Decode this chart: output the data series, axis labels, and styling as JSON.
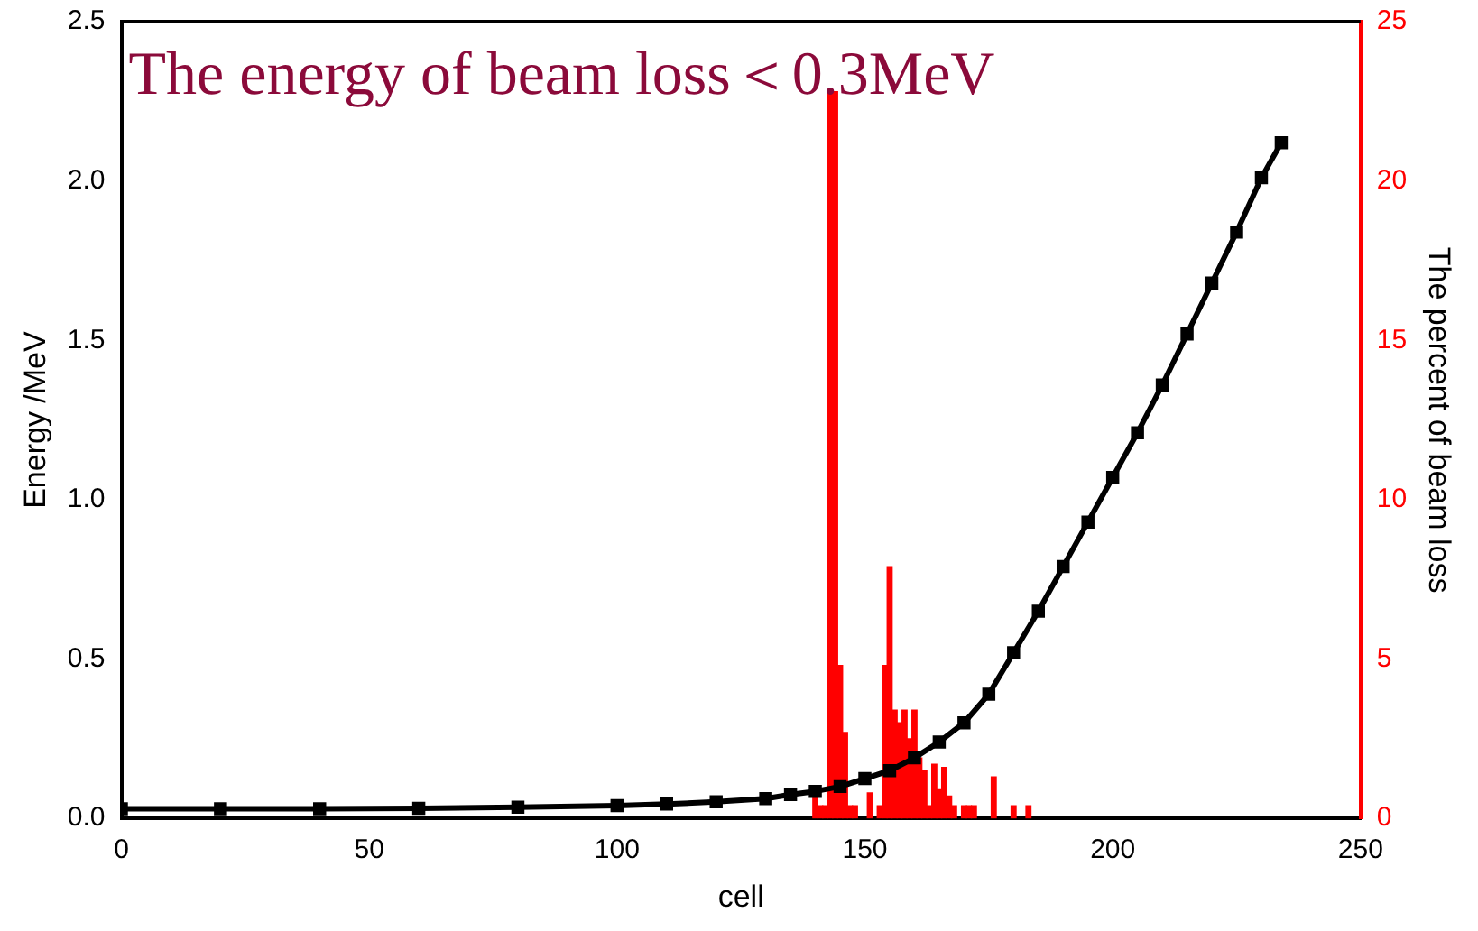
{
  "chart_data": {
    "type": "bar",
    "title": "The energy of beam loss＜0.3MeV",
    "xlabel": "cell",
    "ylabel": "Energy /MeV",
    "y2label": "The percent of beam loss",
    "marker": "square",
    "legend": false,
    "grid": false,
    "xlim": [
      0,
      250
    ],
    "xticks": [
      0,
      50,
      100,
      150,
      200,
      250
    ],
    "ylim": [
      0,
      2.5
    ],
    "yticks": [
      {
        "value": 0,
        "label": "0.0"
      },
      {
        "value": 0.5,
        "label": "0.5"
      },
      {
        "value": 1,
        "label": "1.0"
      },
      {
        "value": 1.5,
        "label": "1.5"
      },
      {
        "value": 2,
        "label": "2.0"
      },
      {
        "value": 2.5,
        "label": "2.5"
      }
    ],
    "y2lim": [
      0,
      25
    ],
    "y2ticks": [
      0,
      5,
      10,
      15,
      20,
      25
    ],
    "series": [
      {
        "type": "line",
        "color": "#000000",
        "x": [
          0,
          20,
          40,
          60,
          80,
          100,
          110,
          120,
          130,
          135,
          140,
          145,
          150,
          155,
          160,
          165,
          170,
          175,
          180,
          185,
          190,
          195,
          200,
          205,
          210,
          215,
          220,
          225,
          230,
          234
        ],
        "values": [
          0.03,
          0.03,
          0.03,
          0.032,
          0.035,
          0.04,
          0.045,
          0.052,
          0.062,
          0.075,
          0.085,
          0.1,
          0.125,
          0.15,
          0.19,
          0.24,
          0.3,
          0.39,
          0.52,
          0.65,
          0.79,
          0.93,
          1.07,
          1.21,
          1.36,
          1.52,
          1.68,
          1.84,
          2.01,
          2.12
        ]
      },
      {
        "axis": "y2",
        "color": "#ff0000",
        "x": [
          140,
          141,
          142,
          143,
          144,
          145,
          146,
          147,
          148,
          151,
          153,
          154,
          155,
          156,
          157,
          158,
          159,
          160,
          161,
          162,
          163,
          164,
          165,
          166,
          167,
          168,
          170,
          171,
          172,
          176,
          180,
          183
        ],
        "values": [
          0.8,
          0.4,
          0.4,
          22.8,
          22.8,
          4.8,
          2.7,
          0.4,
          0.4,
          0.8,
          0.4,
          4.8,
          7.9,
          3.4,
          3.0,
          3.4,
          2.5,
          3.4,
          1.9,
          1.5,
          0.4,
          1.7,
          0.9,
          1.6,
          0.7,
          0.4,
          0.4,
          0.4,
          0.4,
          1.3,
          0.4,
          0.4
        ]
      }
    ]
  }
}
